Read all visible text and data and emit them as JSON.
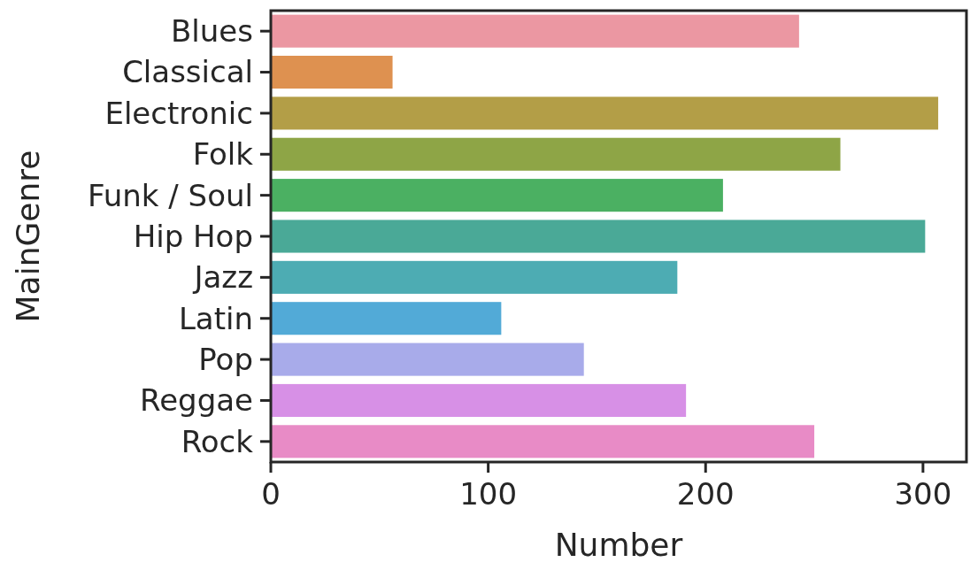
{
  "chart_data": {
    "type": "bar",
    "orientation": "horizontal",
    "xlabel": "Number",
    "ylabel": "MainGenre",
    "categories": [
      "Blues",
      "Classical",
      "Electronic",
      "Folk",
      "Funk / Soul",
      "Hip Hop",
      "Jazz",
      "Latin",
      "Pop",
      "Reggae",
      "Rock"
    ],
    "values": [
      243,
      56,
      307,
      262,
      208,
      301,
      187,
      106,
      144,
      191,
      250
    ],
    "colors": [
      "#eb97a2",
      "#de9150",
      "#b39e47",
      "#8ea546",
      "#4bb062",
      "#4aa997",
      "#4dacb3",
      "#52aad7",
      "#a8abea",
      "#d790e6",
      "#e88bc6"
    ],
    "xlim": [
      0,
      320
    ],
    "xticks": [
      0,
      100,
      200,
      300
    ],
    "grid": false
  }
}
